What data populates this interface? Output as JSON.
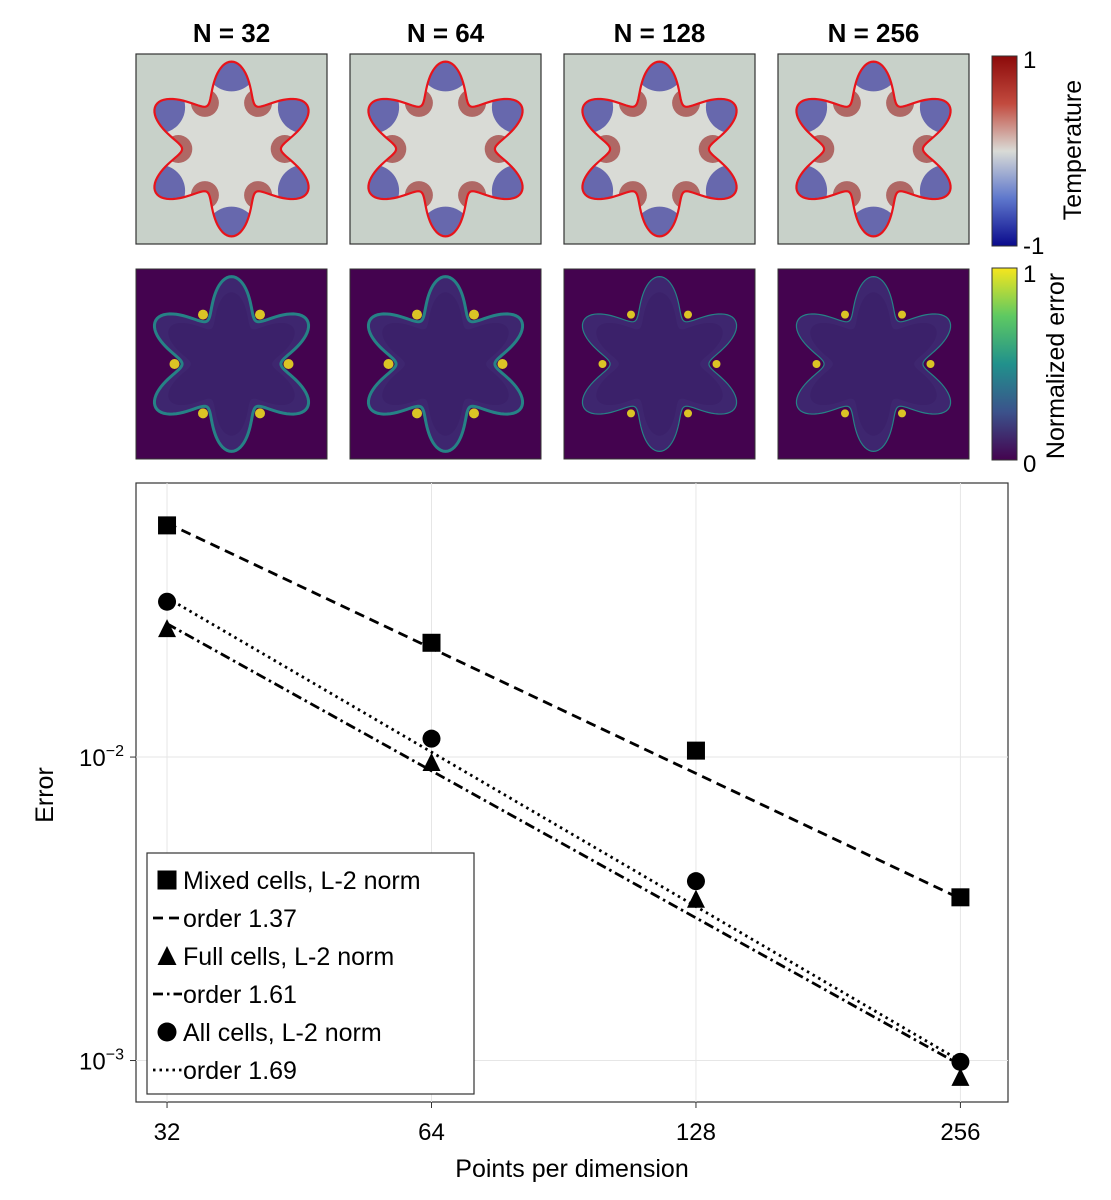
{
  "panels": {
    "titles": [
      "N = 32",
      "N = 64",
      "N = 128",
      "N = 256"
    ],
    "resolutions": [
      32,
      64,
      128,
      256
    ]
  },
  "colorbars": {
    "temperature": {
      "label": "Temperature",
      "max_label": "1",
      "min_label": "-1",
      "range": [
        -1,
        1
      ]
    },
    "error": {
      "label": "Normalized error",
      "max_label": "1",
      "min_label": "0",
      "range": [
        0,
        1
      ]
    }
  },
  "colors": {
    "interface": "#e8141a",
    "temp_low": "#0a0a8c",
    "temp_mid": "#d9dbd6",
    "temp_high": "#8c0a0a",
    "err_low": "#44034f",
    "err_mid": "#23908c",
    "err_high": "#f6e61d"
  },
  "chart_data": {
    "type": "scatter",
    "xscale": "log2",
    "yscale": "log10",
    "xlabel": "Points per dimension",
    "ylabel": "Error",
    "x": [
      32,
      64,
      128,
      256
    ],
    "xtick_labels": [
      "32",
      "64",
      "128",
      "256"
    ],
    "xlim": [
      29.5,
      290
    ],
    "ylim": [
      0.00073,
      0.08
    ],
    "yticks": [
      {
        "value": 0.01,
        "base": "10",
        "exp": "−2"
      },
      {
        "value": 0.001,
        "base": "10",
        "exp": "−3"
      }
    ],
    "grid": true,
    "legend_position": "bottom-left",
    "series": [
      {
        "name": "Mixed cells, L-2 norm",
        "marker": "square",
        "values": [
          0.058,
          0.0238,
          0.0105,
          0.00345
        ]
      },
      {
        "name": "order 1.37",
        "line": "dashed",
        "fit_of": 0,
        "order": 1.37,
        "anchor": [
          32,
          0.059
        ]
      },
      {
        "name": "Full cells, L-2 norm",
        "marker": "triangle",
        "values": [
          0.0265,
          0.0096,
          0.0034,
          0.00088
        ]
      },
      {
        "name": "order 1.61",
        "line": "dashdot",
        "fit_of": 2,
        "order": 1.61,
        "anchor": [
          32,
          0.0275
        ]
      },
      {
        "name": "All cells, L-2 norm",
        "marker": "circle",
        "values": [
          0.0325,
          0.0115,
          0.0039,
          0.00099
        ]
      },
      {
        "name": "order 1.69",
        "line": "dotted",
        "fit_of": 4,
        "order": 1.69,
        "anchor": [
          32,
          0.0335
        ]
      }
    ]
  }
}
